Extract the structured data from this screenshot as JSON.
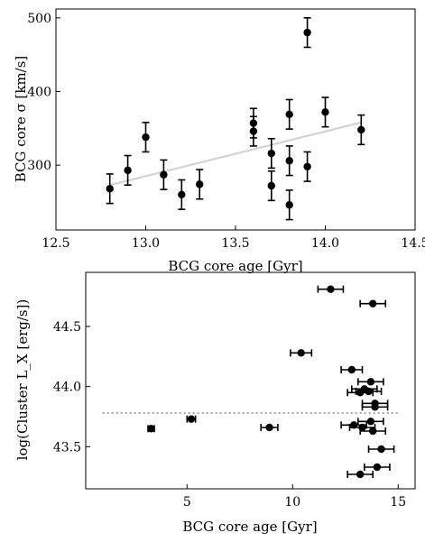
{
  "chart_data": [
    {
      "type": "scatter",
      "xlabel": "BCG core age [Gyr]",
      "ylabel": "BCG core σ [km/s]",
      "xlim": [
        12.5,
        14.5
      ],
      "ylim": [
        212,
        512
      ],
      "xticks": [
        12.5,
        13.0,
        13.5,
        14.0,
        14.5
      ],
      "xtick_labels": [
        "12.5",
        "13.0",
        "13.5",
        "14.0",
        "14.5"
      ],
      "yticks": [
        300,
        400,
        500
      ],
      "ytick_labels": [
        "300",
        "400",
        "500"
      ],
      "grid": false,
      "error_bars": "vertical",
      "points": [
        {
          "x": 12.8,
          "y": 268,
          "err": 20
        },
        {
          "x": 12.9,
          "y": 293,
          "err": 20
        },
        {
          "x": 13.0,
          "y": 338,
          "err": 20
        },
        {
          "x": 13.1,
          "y": 287,
          "err": 20
        },
        {
          "x": 13.2,
          "y": 260,
          "err": 20
        },
        {
          "x": 13.3,
          "y": 274,
          "err": 20
        },
        {
          "x": 13.6,
          "y": 357,
          "err": 20
        },
        {
          "x": 13.6,
          "y": 346,
          "err": 20
        },
        {
          "x": 13.7,
          "y": 316,
          "err": 20
        },
        {
          "x": 13.7,
          "y": 272,
          "err": 20
        },
        {
          "x": 13.8,
          "y": 369,
          "err": 20
        },
        {
          "x": 13.8,
          "y": 306,
          "err": 20
        },
        {
          "x": 13.8,
          "y": 246,
          "err": 20
        },
        {
          "x": 13.9,
          "y": 480,
          "err": 20
        },
        {
          "x": 13.9,
          "y": 298,
          "err": 20
        },
        {
          "x": 14.0,
          "y": 372,
          "err": 20
        },
        {
          "x": 14.2,
          "y": 348,
          "err": 20
        }
      ],
      "fit_line": {
        "x": [
          12.8,
          14.2
        ],
        "y": [
          273,
          358
        ],
        "color": "#d3d3d3"
      }
    },
    {
      "type": "scatter",
      "xlabel": "BCG core age [Gyr]",
      "ylabel": "log(Cluster L_X [erg/s])",
      "xlim": [
        0.2,
        15.8
      ],
      "ylim": [
        43.15,
        44.95
      ],
      "xticks": [
        5,
        10,
        15
      ],
      "xtick_labels": [
        "5",
        "10",
        "15"
      ],
      "yticks": [
        43.5,
        44.0,
        44.5
      ],
      "ytick_labels": [
        "43.5",
        "44.0",
        "44.5"
      ],
      "grid": false,
      "error_bars": "horizontal",
      "points": [
        {
          "x": 11.8,
          "y": 44.81,
          "err": 0.6
        },
        {
          "x": 13.8,
          "y": 44.69,
          "err": 0.6
        },
        {
          "x": 10.4,
          "y": 44.28,
          "err": 0.5
        },
        {
          "x": 12.8,
          "y": 44.14,
          "err": 0.5
        },
        {
          "x": 13.7,
          "y": 44.04,
          "err": 0.6
        },
        {
          "x": 13.4,
          "y": 43.98,
          "err": 0.6
        },
        {
          "x": 13.6,
          "y": 43.96,
          "err": 0.6
        },
        {
          "x": 13.2,
          "y": 43.95,
          "err": 0.6
        },
        {
          "x": 13.9,
          "y": 43.86,
          "err": 0.6
        },
        {
          "x": 13.9,
          "y": 43.83,
          "err": 0.6
        },
        {
          "x": 13.7,
          "y": 43.71,
          "err": 0.6
        },
        {
          "x": 12.9,
          "y": 43.68,
          "err": 0.6
        },
        {
          "x": 13.3,
          "y": 43.66,
          "err": 0.6
        },
        {
          "x": 13.8,
          "y": 43.63,
          "err": 0.6
        },
        {
          "x": 14.2,
          "y": 43.48,
          "err": 0.6
        },
        {
          "x": 14.0,
          "y": 43.33,
          "err": 0.6
        },
        {
          "x": 13.2,
          "y": 43.27,
          "err": 0.6
        },
        {
          "x": 3.3,
          "y": 43.65,
          "err": 0.15
        },
        {
          "x": 5.2,
          "y": 43.73,
          "err": 0.2
        },
        {
          "x": 8.9,
          "y": 43.66,
          "err": 0.4
        }
      ],
      "reference_line": {
        "y": 43.78,
        "x": [
          1.0,
          15.0
        ],
        "style": "dotted",
        "color": "#888888"
      }
    }
  ]
}
